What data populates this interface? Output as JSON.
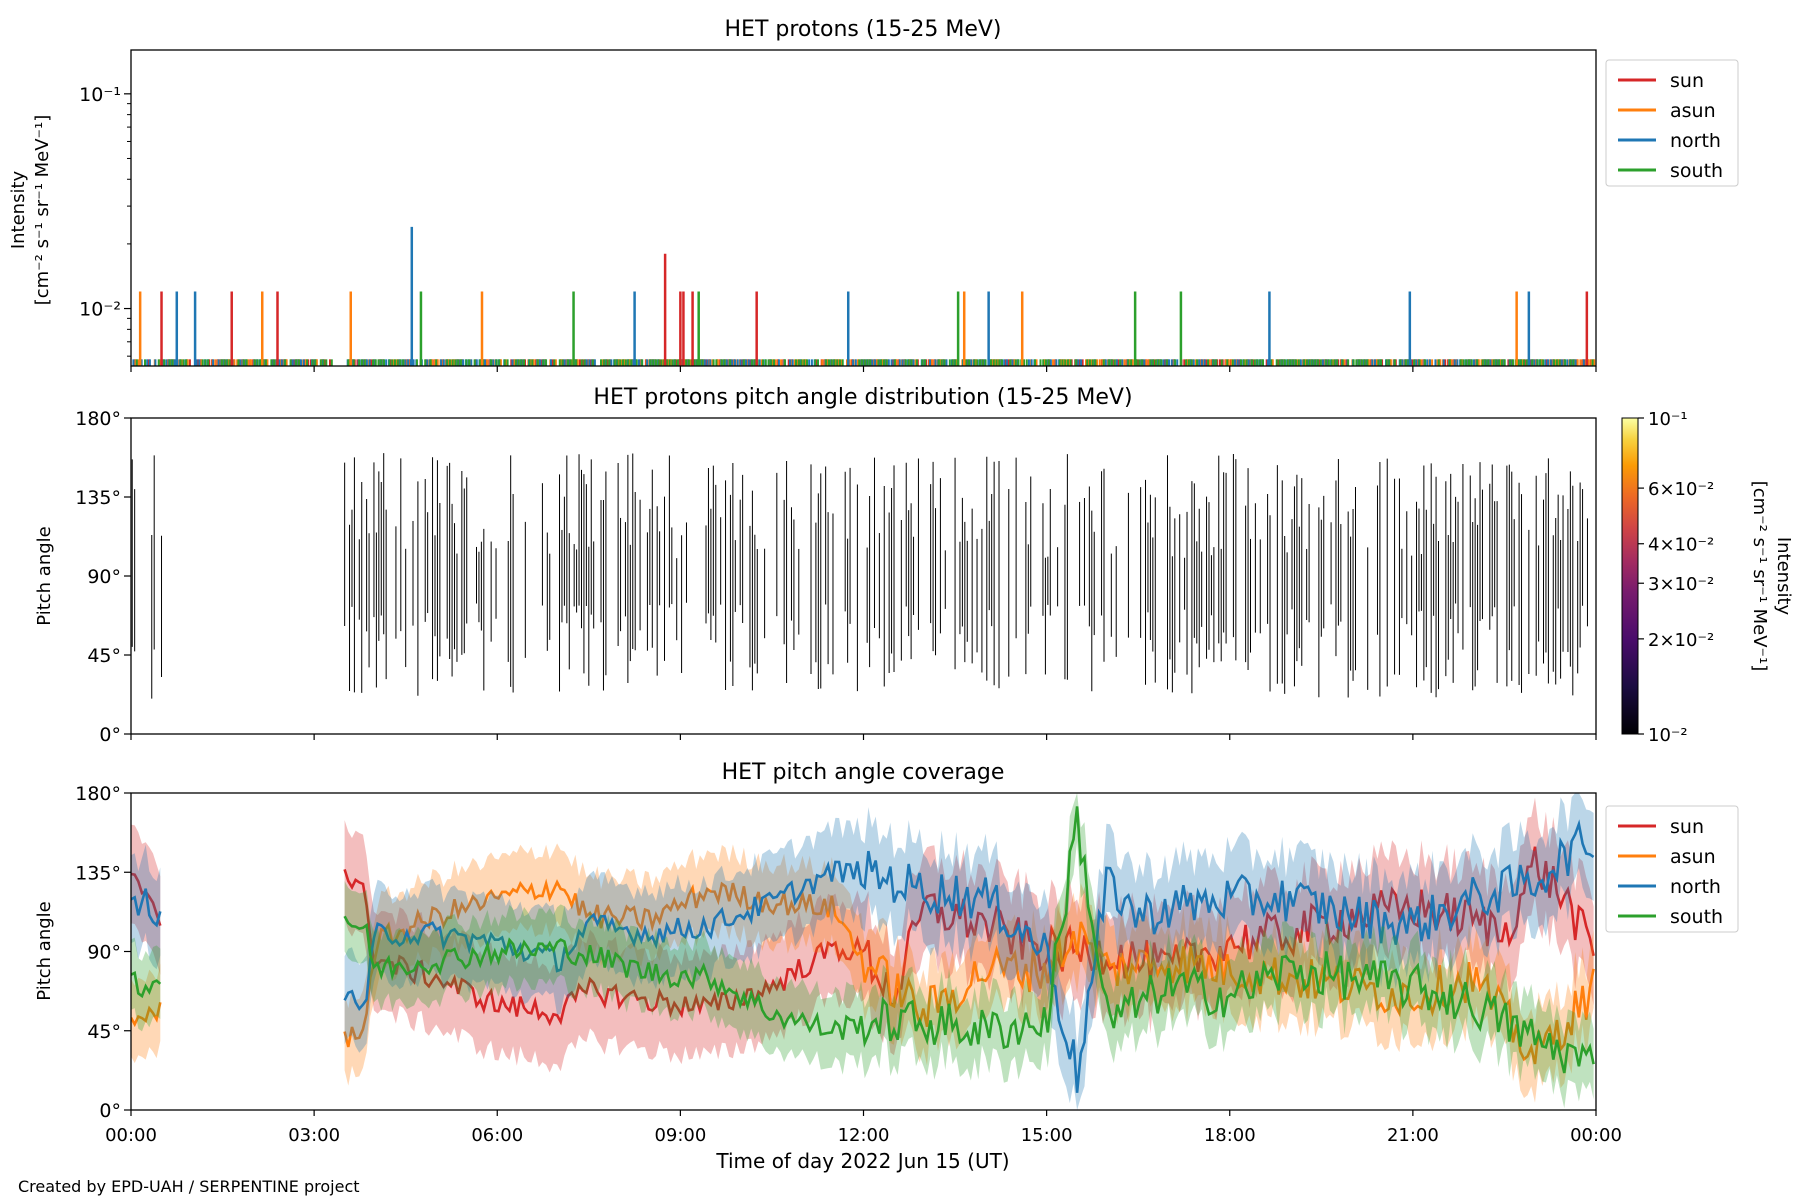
{
  "figure": {
    "footer": "Created by EPD-UAH / SERPENTINE project",
    "xlabel": "Time of day 2022 Jun 15 (UT)",
    "x_ticks": [
      "00:00",
      "03:00",
      "06:00",
      "09:00",
      "12:00",
      "15:00",
      "18:00",
      "21:00",
      "00:00"
    ],
    "x_range_hours": [
      0,
      24
    ]
  },
  "chart_data": [
    {
      "type": "line",
      "title": "HET protons (15-25 MeV)",
      "ylabel_line1": "Intensity",
      "ylabel_line2": "[cm⁻² s⁻¹ sr⁻¹ MeV⁻¹]",
      "yscale": "log",
      "ylim": [
        0.0054,
        0.16
      ],
      "y_ticks": [
        {
          "value": 0.1,
          "label": "10⁻¹"
        },
        {
          "value": 0.01,
          "label": "10⁻²"
        }
      ],
      "baseline_value": 0.0058,
      "legend_position": "outside-right-top",
      "series": [
        {
          "name": "sun",
          "color": "#d62728",
          "spikes": [
            [
              0.5,
              0.012
            ],
            [
              1.65,
              0.012
            ],
            [
              2.4,
              0.012
            ],
            [
              8.75,
              0.018
            ],
            [
              9.0,
              0.012
            ],
            [
              9.05,
              0.012
            ],
            [
              9.2,
              0.012
            ],
            [
              10.25,
              0.012
            ],
            [
              23.85,
              0.012
            ]
          ]
        },
        {
          "name": "asun",
          "color": "#ff7f0e",
          "spikes": [
            [
              0.15,
              0.012
            ],
            [
              2.15,
              0.012
            ],
            [
              3.6,
              0.012
            ],
            [
              5.75,
              0.012
            ],
            [
              13.65,
              0.012
            ],
            [
              14.6,
              0.012
            ],
            [
              22.7,
              0.012
            ]
          ]
        },
        {
          "name": "north",
          "color": "#1f77b4",
          "spikes": [
            [
              0.75,
              0.012
            ],
            [
              1.05,
              0.012
            ],
            [
              4.6,
              0.024
            ],
            [
              8.25,
              0.012
            ],
            [
              11.75,
              0.012
            ],
            [
              14.05,
              0.012
            ],
            [
              18.65,
              0.012
            ],
            [
              20.95,
              0.012
            ],
            [
              22.9,
              0.012
            ]
          ]
        },
        {
          "name": "south",
          "color": "#2ca02c",
          "spikes": [
            [
              4.75,
              0.012
            ],
            [
              7.25,
              0.012
            ],
            [
              9.3,
              0.012
            ],
            [
              13.55,
              0.012
            ],
            [
              16.45,
              0.012
            ],
            [
              17.2,
              0.012
            ]
          ]
        }
      ]
    },
    {
      "type": "heatmap",
      "title": "HET protons pitch angle distribution (15-25 MeV)",
      "ylabel": "Pitch angle",
      "ylim": [
        0,
        180
      ],
      "y_ticks": [
        {
          "value": 0,
          "label": "0°"
        },
        {
          "value": 45,
          "label": "45°"
        },
        {
          "value": 90,
          "label": "90°"
        },
        {
          "value": 135,
          "label": "135°"
        },
        {
          "value": 180,
          "label": "180°"
        }
      ],
      "colorbar": {
        "label_line1": "Intensity",
        "label_line2": "[cm⁻² s⁻¹ sr⁻¹ MeV⁻¹]",
        "scale": "log",
        "range": [
          0.01,
          0.1
        ],
        "colormap": "inferno",
        "major_ticks": [
          {
            "value": 0.1,
            "label": "10⁻¹"
          },
          {
            "value": 0.01,
            "label": "10⁻²"
          }
        ],
        "minor_ticks": [
          {
            "value": 0.06,
            "label": "6×10⁻²"
          },
          {
            "value": 0.04,
            "label": "4×10⁻²"
          },
          {
            "value": 0.03,
            "label": "3×10⁻²"
          },
          {
            "value": 0.02,
            "label": "2×10⁻²"
          }
        ]
      },
      "data_gaps_hours": [
        [
          0.5,
          3.5
        ]
      ]
    },
    {
      "type": "line",
      "title": "HET pitch angle coverage",
      "ylabel": "Pitch angle",
      "ylim": [
        0,
        180
      ],
      "y_ticks": [
        {
          "value": 0,
          "label": "0°"
        },
        {
          "value": 45,
          "label": "45°"
        },
        {
          "value": 90,
          "label": "90°"
        },
        {
          "value": 135,
          "label": "135°"
        },
        {
          "value": 180,
          "label": "180°"
        }
      ],
      "legend_position": "outside-right-top",
      "gap_hours": [
        0.5,
        3.5
      ],
      "series": [
        {
          "name": "sun",
          "color": "#d62728",
          "halfwidth": 28,
          "points": [
            [
              0,
              130
            ],
            [
              0.25,
              125
            ],
            [
              0.5,
              110
            ],
            [
              3.5,
              135
            ],
            [
              3.85,
              120
            ],
            [
              4,
              85
            ],
            [
              5,
              75
            ],
            [
              6,
              60
            ],
            [
              7,
              55
            ],
            [
              7.5,
              68
            ],
            [
              8.5,
              62
            ],
            [
              9.5,
              58
            ],
            [
              10.5,
              70
            ],
            [
              11.5,
              92
            ],
            [
              12,
              90
            ],
            [
              12.5,
              65
            ],
            [
              13,
              115
            ],
            [
              14,
              105
            ],
            [
              15,
              90
            ],
            [
              16,
              90
            ],
            [
              17,
              80
            ],
            [
              18,
              95
            ],
            [
              19,
              100
            ],
            [
              20,
              110
            ],
            [
              21,
              115
            ],
            [
              22,
              108
            ],
            [
              22.5,
              100
            ],
            [
              23,
              140
            ],
            [
              23.5,
              120
            ],
            [
              24,
              85
            ]
          ]
        },
        {
          "name": "asun",
          "color": "#ff7f0e",
          "halfwidth": 22,
          "points": [
            [
              0,
              50
            ],
            [
              0.25,
              55
            ],
            [
              0.5,
              55
            ],
            [
              3.5,
              40
            ],
            [
              3.85,
              50
            ],
            [
              4,
              95
            ],
            [
              5,
              110
            ],
            [
              6,
              120
            ],
            [
              7,
              128
            ],
            [
              7.5,
              110
            ],
            [
              8.5,
              108
            ],
            [
              9.5,
              125
            ],
            [
              10.5,
              118
            ],
            [
              11.5,
              115
            ],
            [
              12,
              85
            ],
            [
              13,
              55
            ],
            [
              14,
              80
            ],
            [
              15,
              80
            ],
            [
              15.5,
              100
            ],
            [
              16,
              80
            ],
            [
              17,
              85
            ],
            [
              18,
              80
            ],
            [
              19,
              75
            ],
            [
              20,
              70
            ],
            [
              21,
              65
            ],
            [
              22,
              75
            ],
            [
              23,
              30
            ],
            [
              24,
              70
            ]
          ]
        },
        {
          "name": "north",
          "color": "#1f77b4",
          "halfwidth": 25,
          "points": [
            [
              0,
              115
            ],
            [
              0.25,
              120
            ],
            [
              0.5,
              105
            ],
            [
              3.5,
              65
            ],
            [
              3.85,
              60
            ],
            [
              4,
              100
            ],
            [
              5,
              100
            ],
            [
              6,
              95
            ],
            [
              7,
              85
            ],
            [
              7.5,
              105
            ],
            [
              8.5,
              100
            ],
            [
              9.5,
              105
            ],
            [
              10.5,
              118
            ],
            [
              11.5,
              135
            ],
            [
              12,
              135
            ],
            [
              13,
              125
            ],
            [
              14,
              120
            ],
            [
              15,
              90
            ],
            [
              15.5,
              20
            ],
            [
              16,
              130
            ],
            [
              16.5,
              110
            ],
            [
              17,
              115
            ],
            [
              18,
              120
            ],
            [
              19,
              120
            ],
            [
              20,
              110
            ],
            [
              21,
              105
            ],
            [
              22,
              120
            ],
            [
              23,
              130
            ],
            [
              23.5,
              145
            ],
            [
              24,
              155
            ]
          ]
        },
        {
          "name": "south",
          "color": "#2ca02c",
          "halfwidth": 20,
          "points": [
            [
              0,
              75
            ],
            [
              0.25,
              70
            ],
            [
              0.5,
              75
            ],
            [
              3.5,
              110
            ],
            [
              3.85,
              100
            ],
            [
              4,
              80
            ],
            [
              5,
              85
            ],
            [
              6,
              90
            ],
            [
              7,
              92
            ],
            [
              7.5,
              88
            ],
            [
              8.5,
              78
            ],
            [
              9.5,
              75
            ],
            [
              10.5,
              55
            ],
            [
              11.5,
              45
            ],
            [
              12,
              50
            ],
            [
              13,
              50
            ],
            [
              14,
              45
            ],
            [
              15,
              50
            ],
            [
              15.5,
              165
            ],
            [
              16,
              50
            ],
            [
              17,
              70
            ],
            [
              18,
              65
            ],
            [
              19,
              80
            ],
            [
              20,
              75
            ],
            [
              21,
              70
            ],
            [
              22,
              60
            ],
            [
              23,
              40
            ],
            [
              24,
              25
            ]
          ]
        }
      ]
    }
  ]
}
